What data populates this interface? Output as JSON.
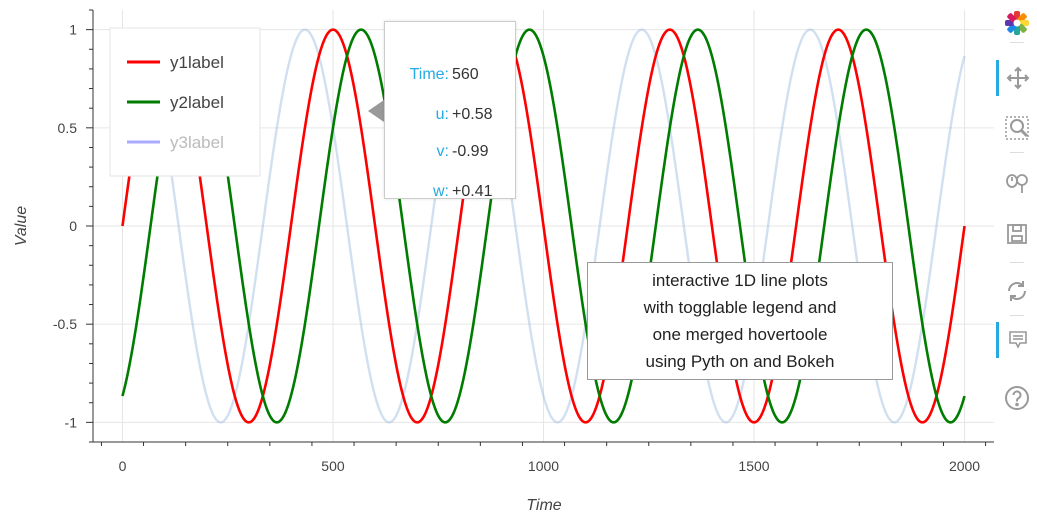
{
  "chart_data": {
    "type": "line",
    "xlabel": "Time",
    "ylabel": "Value",
    "xlim": [
      -70,
      2070
    ],
    "ylim": [
      -1.1,
      1.1
    ],
    "x_ticks": [
      0,
      500,
      1000,
      1500,
      2000
    ],
    "y_ticks": [
      -1,
      -0.5,
      0,
      0.5,
      1
    ],
    "y_tick_labels": [
      "-1",
      "-0.5",
      "0",
      "0.5",
      "1"
    ],
    "x_tick_labels": [
      "0",
      "500",
      "1000",
      "1500",
      "2000"
    ],
    "grid": true,
    "legend_position": "top-left",
    "series": [
      {
        "name": "y1label",
        "function": "sin",
        "period": 400,
        "phase_deg": 0,
        "x_range": [
          0,
          2000
        ],
        "color": "#ff0000",
        "visible": true
      },
      {
        "name": "y2label",
        "function": "sin",
        "period": 400,
        "phase_deg": -60,
        "x_range": [
          0,
          2000
        ],
        "color": "#007d00",
        "visible": true
      },
      {
        "name": "y3label",
        "function": "sin",
        "period": 400,
        "phase_deg": 60,
        "x_range": [
          0,
          2000
        ],
        "color": "#99bbdd",
        "visible": false,
        "legend_color": "#aaaaff"
      }
    ],
    "tooltip": {
      "rows": [
        {
          "key": "Time:",
          "value": "560"
        },
        {
          "key": "u:",
          "value": "+0.58"
        },
        {
          "key": "v:",
          "value": "-0.99"
        },
        {
          "key": "w:",
          "value": "+0.41"
        }
      ]
    },
    "annotation": {
      "lines": [
        "interactive 1D line plots",
        "with togglable legend and",
        "one merged hovertoole",
        "using Pyth on and Bokeh"
      ]
    }
  },
  "toolbar": {
    "tools": [
      {
        "name": "bokeh-logo-icon",
        "active": false
      },
      {
        "name": "pan-icon",
        "active": true
      },
      {
        "name": "box-zoom-icon",
        "active": false
      },
      {
        "name": "wheel-zoom-icon",
        "active": false
      },
      {
        "name": "save-icon",
        "active": false
      },
      {
        "name": "reset-icon",
        "active": false
      },
      {
        "name": "hover-icon",
        "active": true
      },
      {
        "name": "help-icon",
        "active": false
      }
    ]
  }
}
